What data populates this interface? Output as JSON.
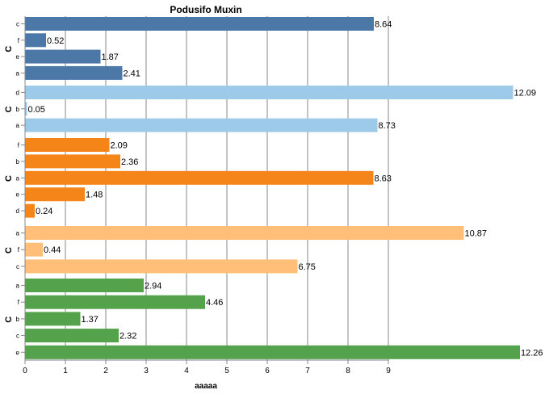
{
  "chart_data": {
    "type": "bar",
    "orientation": "horizontal",
    "title": "Podusifo Muxin",
    "xlabel": "aaaaa",
    "xlim": [
      0,
      12.26
    ],
    "x_ticks": [
      0,
      1,
      2,
      3,
      4,
      5,
      6,
      7,
      8,
      9
    ],
    "grid": true,
    "groups": [
      {
        "label": "C",
        "color": "#4c78a8",
        "categories": [
          "c",
          "f",
          "e",
          "a"
        ],
        "values": [
          8.64,
          0.52,
          1.87,
          2.41
        ]
      },
      {
        "label": "C",
        "color": "#9ecae9",
        "categories": [
          "d",
          "b",
          "a"
        ],
        "values": [
          12.09,
          0.05,
          8.73
        ]
      },
      {
        "label": "C",
        "color": "#f58518",
        "categories": [
          "f",
          "b",
          "a",
          "e",
          "d"
        ],
        "values": [
          2.09,
          2.36,
          8.63,
          1.48,
          0.24
        ]
      },
      {
        "label": "C",
        "color": "#ffbf79",
        "categories": [
          "a",
          "f",
          "c"
        ],
        "values": [
          10.87,
          0.44,
          6.75
        ]
      },
      {
        "label": "C",
        "color": "#54a24b",
        "categories": [
          "a",
          "f",
          "b",
          "c",
          "e"
        ],
        "values": [
          2.94,
          4.46,
          1.37,
          2.32,
          12.26
        ]
      }
    ]
  }
}
